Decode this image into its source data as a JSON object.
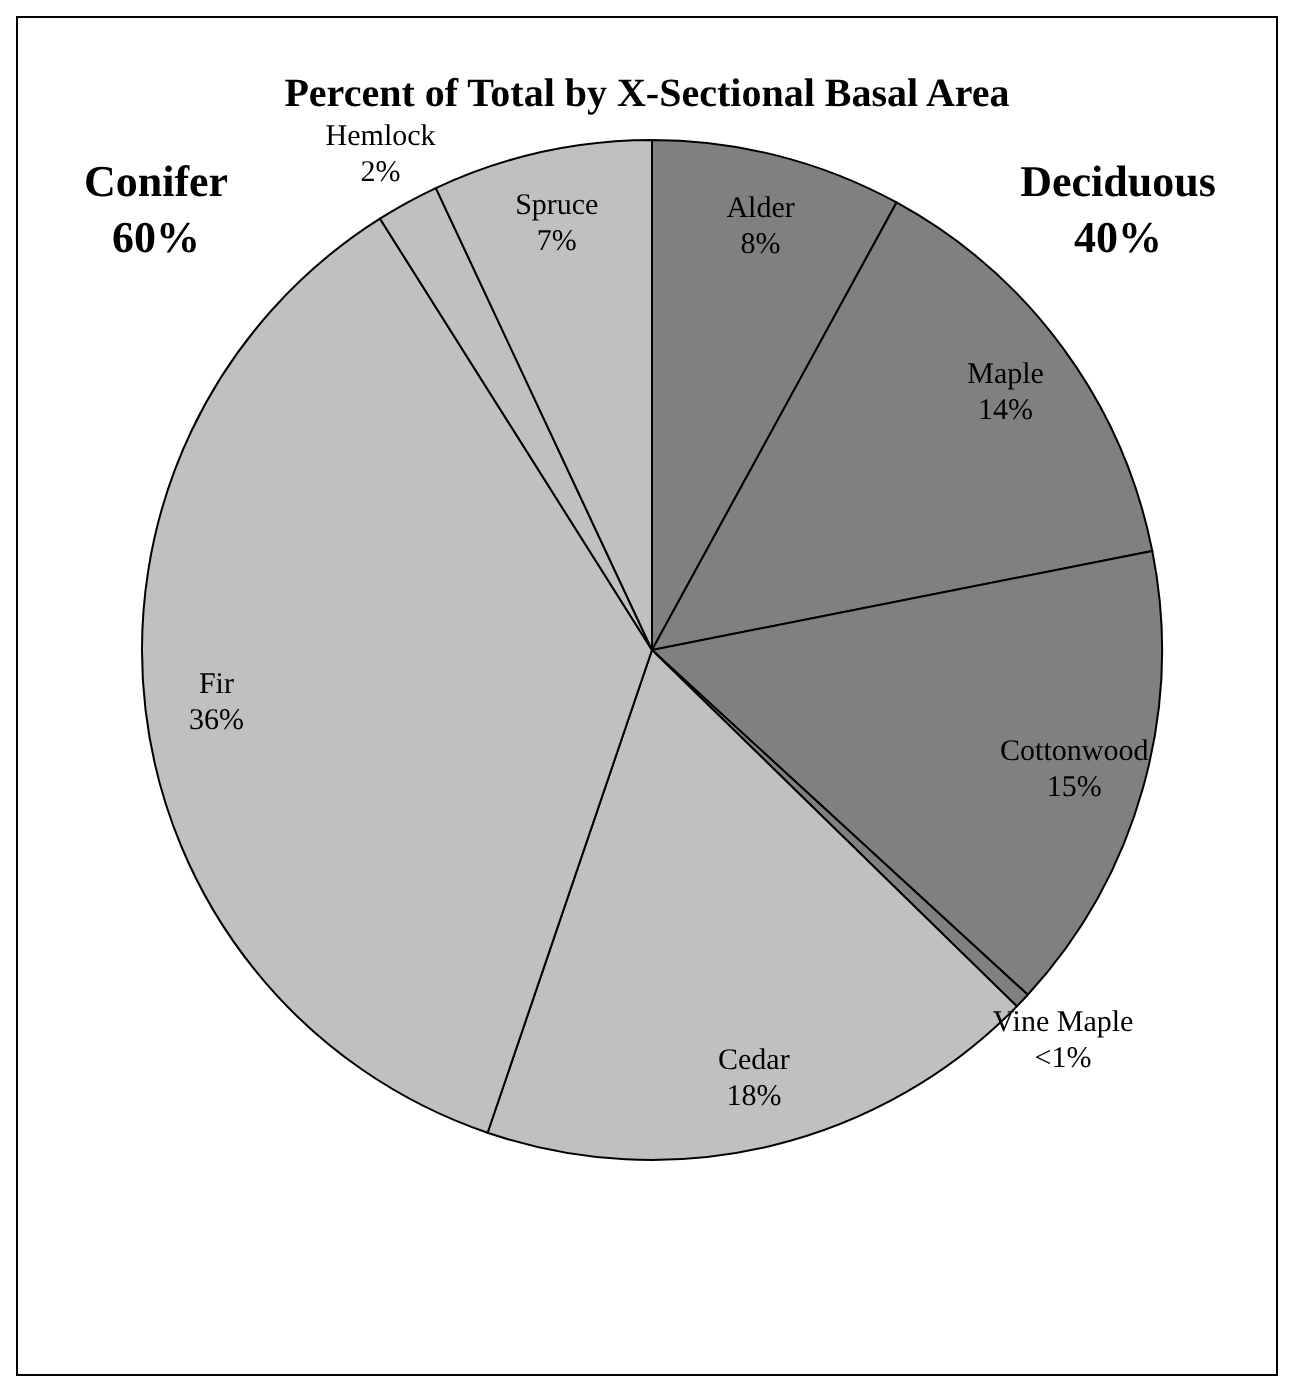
{
  "chart_data": {
    "type": "pie",
    "title": "Percent of Total by X-Sectional Basal Area",
    "categories": [
      "Alder",
      "Maple",
      "Cottonwood",
      "Vine Maple",
      "Cedar",
      "Fir",
      "Hemlock",
      "Spruce"
    ],
    "values": [
      8,
      14,
      15,
      0.5,
      18,
      36,
      2,
      7
    ],
    "value_labels": [
      "8%",
      "14%",
      "15%",
      "<1%",
      "18%",
      "36%",
      "2%",
      "7%"
    ],
    "colors": [
      "#808080",
      "#808080",
      "#808080",
      "#808080",
      "#c0c0c0",
      "#c0c0c0",
      "#c0c0c0",
      "#c0c0c0"
    ],
    "annotations": [
      "Conifer\n60%",
      "Deciduous\n40%"
    ]
  }
}
